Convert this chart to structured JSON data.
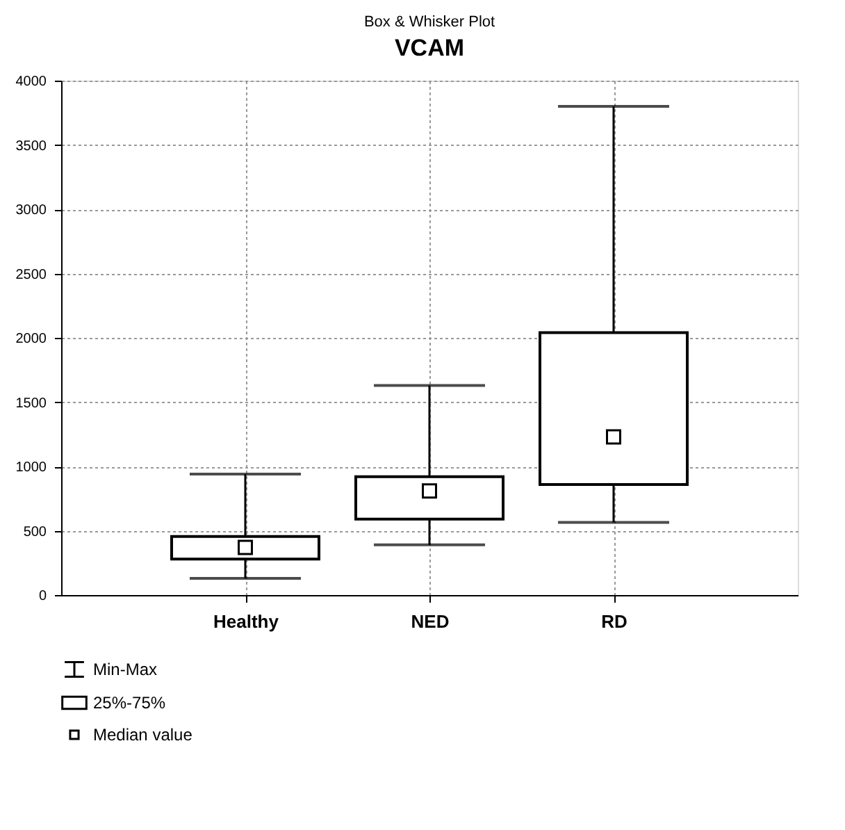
{
  "chart_data": {
    "type": "box",
    "title": "Box & Whisker Plot",
    "subtitle": "VCAM",
    "categories": [
      "Healthy",
      "NED",
      "RD"
    ],
    "boxes": [
      {
        "low": 130,
        "q1": 280,
        "median": 370,
        "q3": 455,
        "high": 940
      },
      {
        "low": 390,
        "q1": 590,
        "median": 810,
        "q3": 920,
        "high": 1630
      },
      {
        "low": 565,
        "q1": 860,
        "median": 1230,
        "q3": 2040,
        "high": 3800
      }
    ],
    "ylim": [
      0,
      4000
    ],
    "yticks": [
      0,
      500,
      1000,
      1500,
      2000,
      2500,
      3000,
      3500,
      4000
    ],
    "grid": true,
    "annotations": [
      "Min-Max",
      "25%-75%",
      "Median value"
    ]
  }
}
